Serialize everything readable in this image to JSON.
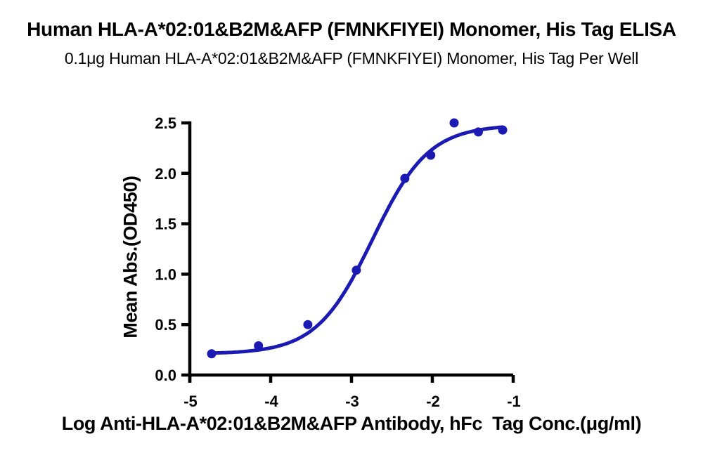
{
  "header": {
    "title": "Human HLA-A*02:01&B2M&AFP (FMNKFIYEI) Monomer, His Tag ELISA",
    "subtitle": "0.1μg Human HLA-A*02:01&B2M&AFP (FMNKFIYEI) Monomer, His Tag Per Well"
  },
  "colors": {
    "axis": "#000000",
    "series_blue": "#1b1bb3",
    "background": "#ffffff"
  },
  "chart_data": {
    "type": "scatter",
    "title": "Human HLA-A*02:01&B2M&AFP (FMNKFIYEI) Monomer, His Tag ELISA",
    "subtitle": "0.1μg Human HLA-A*02:01&B2M&AFP (FMNKFIYEI) Monomer, His Tag Per Well",
    "xlabel": "Log Anti-HLA-A*02:01&B2M&AFP Antibody, hFc  Tag Conc.(μg/ml)",
    "ylabel": "Mean Abs.(OD450)",
    "xlim": [
      -5,
      -1
    ],
    "ylim": [
      0,
      2.5
    ],
    "x_ticks": [
      -5,
      -4,
      -3,
      -2,
      -1
    ],
    "x_tick_labels": [
      "-5",
      "-4",
      "-3",
      "-2",
      "-1"
    ],
    "y_ticks": [
      0.0,
      0.5,
      1.0,
      1.5,
      2.0,
      2.5
    ],
    "y_tick_labels": [
      "0.0",
      "0.5",
      "1.0",
      "1.5",
      "2.0",
      "2.5"
    ],
    "grid": false,
    "legend": "none",
    "series": [
      {
        "name": "Anti-HLA-A*02:01&B2M&AFP Antibody, hFc Tag",
        "color": "#1b1bb3",
        "marker": "circle",
        "points": [
          {
            "x": -4.73,
            "y": 0.21
          },
          {
            "x": -4.15,
            "y": 0.29
          },
          {
            "x": -3.54,
            "y": 0.5
          },
          {
            "x": -2.94,
            "y": 1.04
          },
          {
            "x": -2.34,
            "y": 1.95
          },
          {
            "x": -2.02,
            "y": 2.18
          },
          {
            "x": -1.73,
            "y": 2.5
          },
          {
            "x": -1.43,
            "y": 2.41
          },
          {
            "x": -1.13,
            "y": 2.43
          }
        ],
        "fit": {
          "model": "4PL",
          "bottom": 0.21,
          "top": 2.48,
          "log_ec50": -2.74,
          "hill": 1.25,
          "x_range": [
            -4.73,
            -1.13
          ]
        }
      }
    ]
  }
}
